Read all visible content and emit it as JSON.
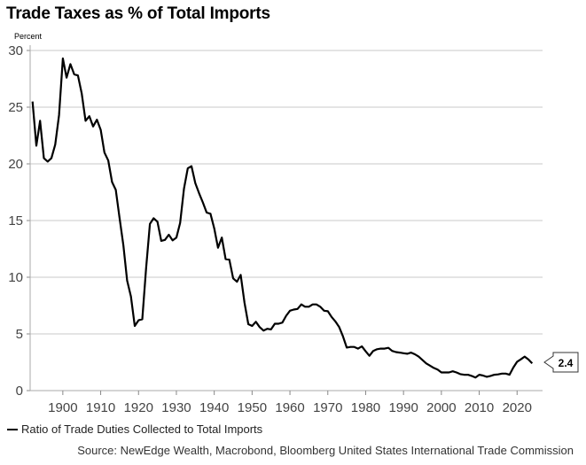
{
  "chart_data": {
    "type": "line",
    "title": "Trade Taxes as % of Total Imports",
    "ylabel": "Percent",
    "xlabel": "",
    "ylim": [
      0,
      30
    ],
    "yticks": [
      0,
      5,
      10,
      15,
      20,
      25,
      30
    ],
    "xticks": [
      1900,
      1910,
      1920,
      1930,
      1940,
      1950,
      1960,
      1970,
      1980,
      1990,
      2000,
      2010,
      2020
    ],
    "grid": true,
    "legend_position": "bottom-left",
    "line_color": "#000000",
    "last_value_label": "2.4",
    "x_start": 1892,
    "series": [
      {
        "name": "Ratio of Trade Duties Collected to Total Imports",
        "values": [
          25.5,
          21.6,
          23.8,
          20.5,
          20.2,
          20.5,
          21.7,
          24.3,
          29.3,
          27.6,
          28.8,
          27.9,
          27.8,
          26.2,
          23.8,
          24.2,
          23.3,
          23.9,
          23.0,
          21.0,
          20.3,
          18.4,
          17.7,
          15.2,
          12.8,
          9.7,
          8.3,
          5.7,
          6.2,
          6.3,
          10.8,
          14.7,
          15.2,
          14.9,
          13.2,
          13.3,
          13.75,
          13.25,
          13.5,
          14.8,
          17.8,
          19.6,
          19.8,
          18.3,
          17.4,
          16.6,
          15.7,
          15.6,
          14.3,
          12.6,
          13.5,
          11.6,
          11.55,
          9.9,
          9.6,
          10.2,
          7.75,
          5.86,
          5.7,
          6.07,
          5.6,
          5.3,
          5.45,
          5.4,
          5.9,
          5.9,
          6.0,
          6.6,
          7.05,
          7.15,
          7.2,
          7.6,
          7.4,
          7.4,
          7.6,
          7.6,
          7.4,
          7.05,
          7.0,
          6.5,
          6.1,
          5.6,
          4.8,
          3.8,
          3.85,
          3.85,
          3.7,
          3.9,
          3.46,
          3.07,
          3.5,
          3.65,
          3.7,
          3.7,
          3.77,
          3.5,
          3.4,
          3.35,
          3.3,
          3.25,
          3.35,
          3.2,
          3.0,
          2.7,
          2.4,
          2.2,
          2.0,
          1.85,
          1.6,
          1.6,
          1.6,
          1.7,
          1.6,
          1.45,
          1.4,
          1.4,
          1.3,
          1.15,
          1.4,
          1.33,
          1.22,
          1.3,
          1.4,
          1.43,
          1.5,
          1.5,
          1.4,
          2.03,
          2.55,
          2.76,
          3.0,
          2.74,
          2.4
        ]
      }
    ]
  },
  "source": "Source: NewEdge Wealth, Macrobond, Bloomberg United States International Trade Commission"
}
